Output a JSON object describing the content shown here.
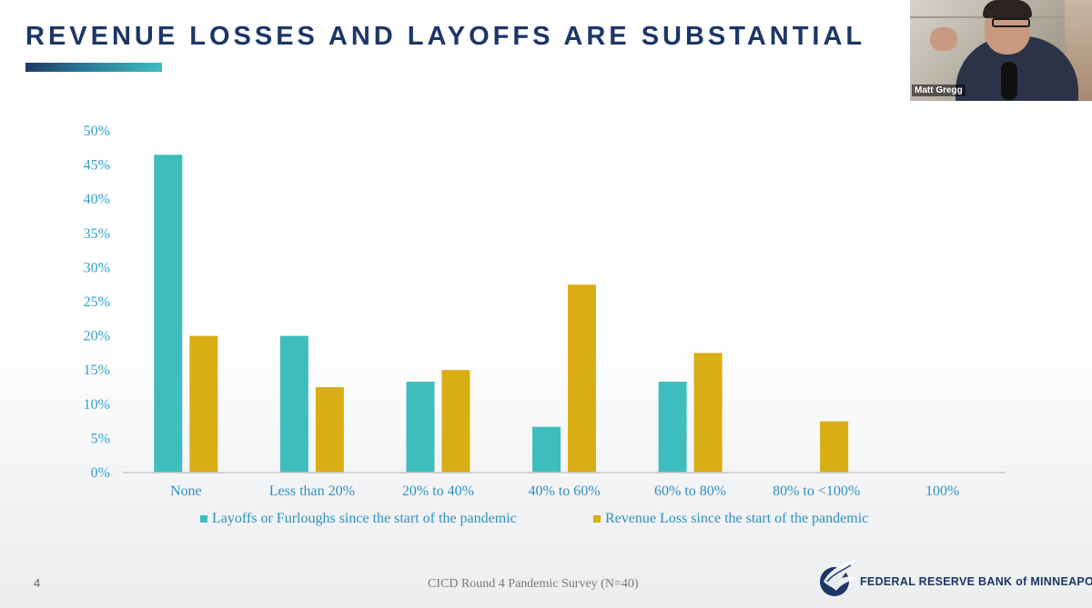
{
  "slide": {
    "title": "REVENUE LOSSES AND LAYOFFS ARE SUBSTANTIAL",
    "page_number": "4",
    "footer_source": "CICD Round 4 Pandemic Survey (N=40)",
    "org_name": "FEDERAL RESERVE BANK of MINNEAPOLIS"
  },
  "video": {
    "participant_name": "Matt Gregg"
  },
  "colors": {
    "title": "#1d3666",
    "series_layoffs": "#3dbdbd",
    "series_revenue": "#d9ad14",
    "axis_text": "#2f9fc9",
    "axis_line": "#c9c9c9"
  },
  "chart_data": {
    "type": "bar",
    "title": "",
    "xlabel": "",
    "ylabel": "",
    "categories": [
      "None",
      "Less than 20%",
      "20% to 40%",
      "40% to 60%",
      "60% to 80%",
      "80% to <100%",
      "100%"
    ],
    "series": [
      {
        "name": "Layoffs or Furloughs since the start of the pandemic",
        "values": [
          46.5,
          20,
          13.3,
          6.7,
          13.3,
          0,
          0
        ]
      },
      {
        "name": "Revenue Loss since the start of the pandemic",
        "values": [
          20,
          12.5,
          15,
          27.5,
          17.5,
          7.5,
          0
        ]
      }
    ],
    "ylim": [
      0,
      50
    ],
    "yticks": [
      "0%",
      "5%",
      "10%",
      "15%",
      "20%",
      "25%",
      "30%",
      "35%",
      "40%",
      "45%",
      "50%"
    ],
    "legend_position": "bottom",
    "grid": false
  }
}
